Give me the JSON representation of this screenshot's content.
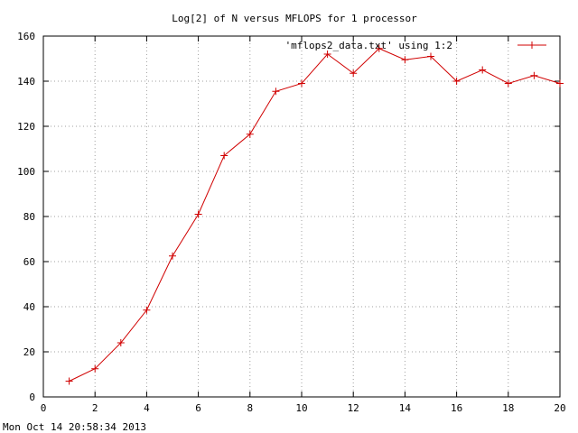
{
  "colors": {
    "series": "#d00000",
    "grid": "#a0a0a0",
    "axis": "#000000",
    "background": "#ffffff"
  },
  "timestamp": "Mon Oct 14 20:58:34 2013",
  "chart_data": {
    "type": "line",
    "title": "Log[2] of N versus MFLOPS for 1 processor",
    "xlabel": "",
    "ylabel": "",
    "xlim": [
      0,
      20
    ],
    "ylim": [
      0,
      160
    ],
    "xticks": [
      0,
      2,
      4,
      6,
      8,
      10,
      12,
      14,
      16,
      18,
      20
    ],
    "yticks": [
      0,
      20,
      40,
      60,
      80,
      100,
      120,
      140,
      160
    ],
    "grid": true,
    "legend_position": "top-right",
    "marker": "plus",
    "series": [
      {
        "name": "'mflops2_data.txt' using 1:2",
        "x": [
          1,
          2,
          3,
          4,
          5,
          6,
          7,
          8,
          9,
          10,
          11,
          12,
          13,
          14,
          15,
          16,
          17,
          18,
          19,
          20
        ],
        "y": [
          7,
          12.5,
          24,
          38.5,
          62.5,
          81,
          107,
          116.5,
          135.5,
          139,
          152,
          143.5,
          154.5,
          149.5,
          151,
          140,
          145,
          139,
          142.5,
          139
        ]
      }
    ]
  }
}
